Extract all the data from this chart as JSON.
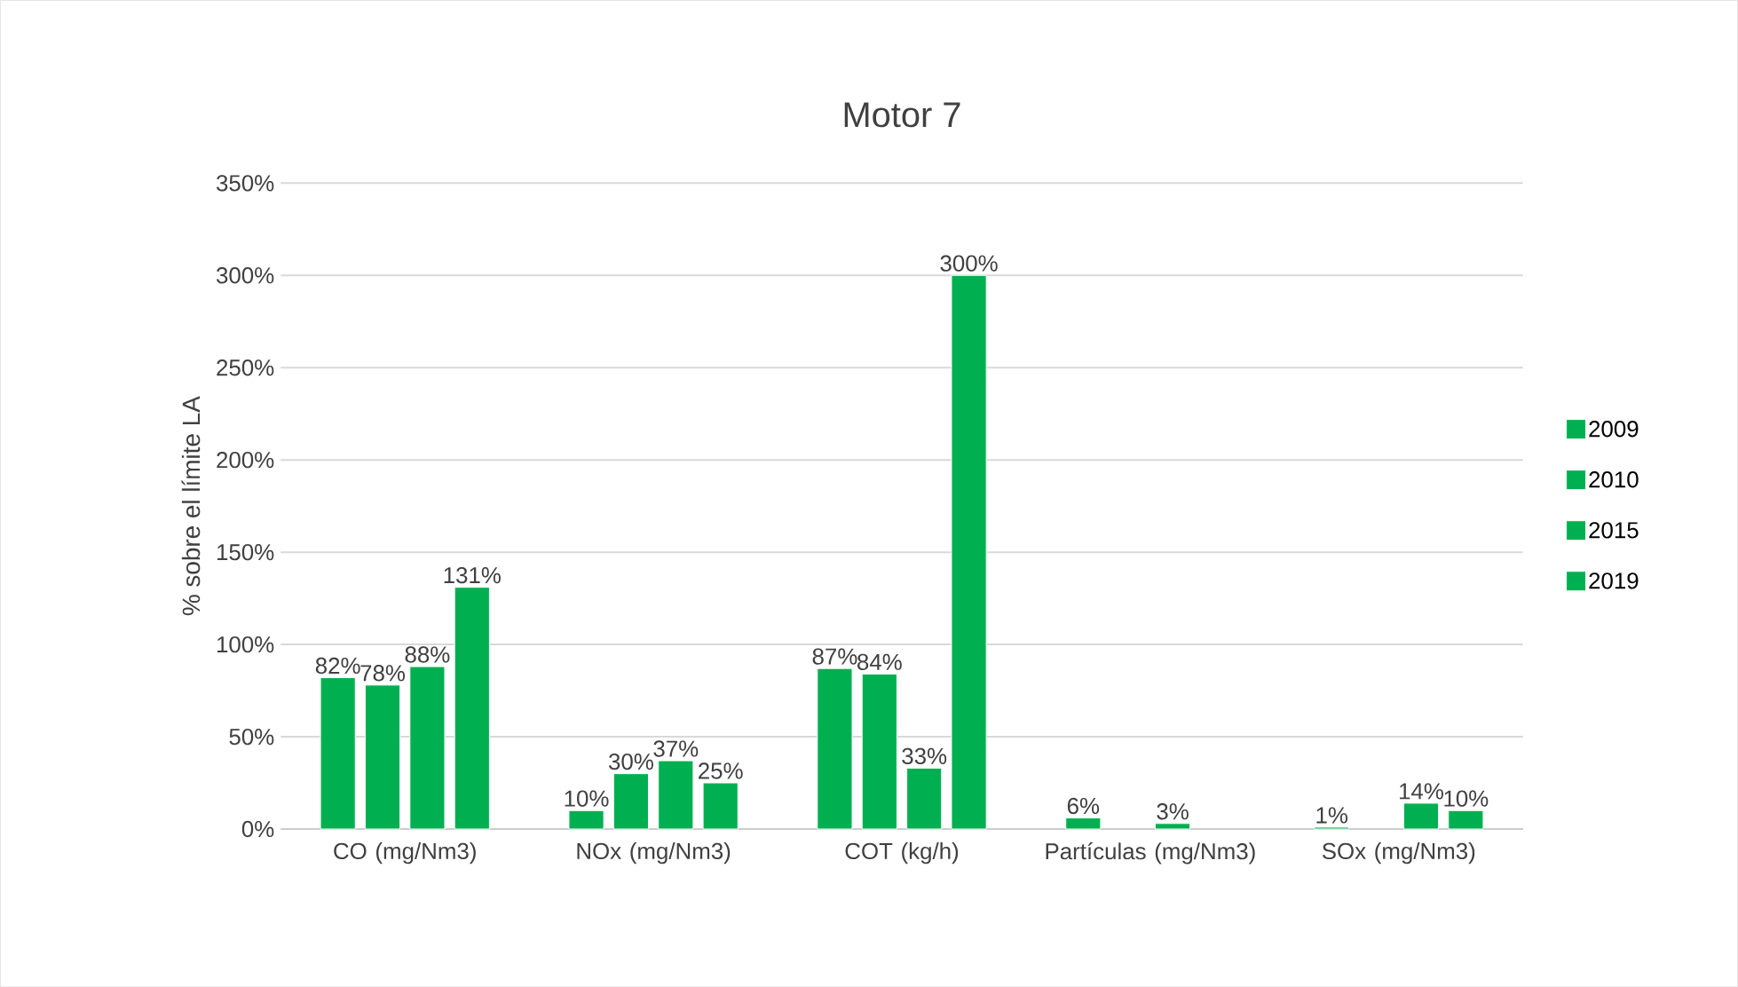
{
  "chart_data": {
    "type": "bar",
    "title": "Motor 7",
    "ylabel": "% sobre el límite LA",
    "categories": [
      "CO (mg/Nm3)",
      "NOx (mg/Nm3)",
      "COT (kg/h)",
      "Partículas (mg/Nm3)",
      "SOx (mg/Nm3)"
    ],
    "series": [
      {
        "name": "2009",
        "color": "#00b050",
        "values": [
          82,
          10,
          87,
          6,
          1
        ],
        "value_labels": [
          "82%",
          "10%",
          "87%",
          "6%",
          "1%"
        ]
      },
      {
        "name": "2010",
        "color": "#00b050",
        "values": [
          78,
          30,
          84,
          null,
          null
        ],
        "value_labels": [
          "78%",
          "30%",
          "84%",
          null,
          null
        ]
      },
      {
        "name": "2015",
        "color": "#00b050",
        "values": [
          88,
          37,
          33,
          3,
          14
        ],
        "value_labels": [
          "88%",
          "37%",
          "33%",
          "3%",
          "14%"
        ]
      },
      {
        "name": "2019",
        "color": "#00b050",
        "values": [
          131,
          25,
          300,
          null,
          10
        ],
        "value_labels": [
          "131%",
          "25%",
          "300%",
          null,
          "10%"
        ]
      }
    ],
    "ylim": [
      0,
      350
    ],
    "yticks": [
      {
        "value": 0,
        "label": "0%"
      },
      {
        "value": 50,
        "label": "50%"
      },
      {
        "value": 100,
        "label": "100%"
      },
      {
        "value": 150,
        "label": "150%"
      },
      {
        "value": 200,
        "label": "200%"
      },
      {
        "value": 250,
        "label": "250%"
      },
      {
        "value": 300,
        "label": "300%"
      },
      {
        "value": 350,
        "label": "350%"
      }
    ],
    "grid": "y",
    "legend": "right"
  }
}
